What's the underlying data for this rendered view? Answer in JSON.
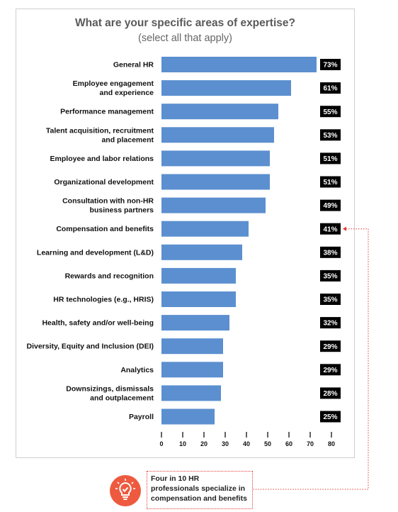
{
  "header": {
    "title": "What are your specific areas of expertise?",
    "subtitle": "(select all that apply)"
  },
  "chart_data": {
    "type": "bar",
    "orientation": "horizontal",
    "title": "What are your specific areas of expertise?",
    "subtitle": "(select all that apply)",
    "categories": [
      [
        "General HR"
      ],
      [
        "Employee engagement",
        "and experience"
      ],
      [
        "Performance management"
      ],
      [
        "Talent acquisition, recruitment",
        "and placement"
      ],
      [
        "Employee and labor relations"
      ],
      [
        "Organizational development"
      ],
      [
        "Consultation with non-HR",
        "business partners"
      ],
      [
        "Compensation and benefits"
      ],
      [
        "Learning and development (L&D)"
      ],
      [
        "Rewards and recognition"
      ],
      [
        "HR technologies (e.g., HRIS)"
      ],
      [
        "Health, safety and/or well-being"
      ],
      [
        "Diversity, Equity and Inclusion (DEI)"
      ],
      [
        "Analytics"
      ],
      [
        "Downsizings, dismissals",
        "and outplacement"
      ],
      [
        "Payroll"
      ]
    ],
    "values": [
      73,
      61,
      55,
      53,
      51,
      51,
      49,
      41,
      38,
      35,
      35,
      32,
      29,
      29,
      28,
      25
    ],
    "value_labels": [
      "73%",
      "61%",
      "55%",
      "53%",
      "51%",
      "51%",
      "49%",
      "41%",
      "38%",
      "35%",
      "35%",
      "32%",
      "29%",
      "29%",
      "28%",
      "25%"
    ],
    "x_ticks": [
      0,
      10,
      20,
      30,
      40,
      50,
      60,
      70,
      80
    ],
    "xlim": [
      0,
      80
    ],
    "xlabel": "",
    "ylabel": "",
    "grid": false,
    "legend": "none",
    "colors": {
      "bar": "#5b8fd0",
      "value_label_bg": "#000000",
      "value_label_text": "#ffffff"
    },
    "highlight_index": 7
  },
  "callout": {
    "text_lines": [
      "Four in 10 HR",
      "professionals specialize in",
      "compensation and benefits"
    ],
    "icon": "lightbulb-icon",
    "colors": {
      "icon_bg": "#ee5a3f",
      "connector": "#e23b3b"
    }
  }
}
